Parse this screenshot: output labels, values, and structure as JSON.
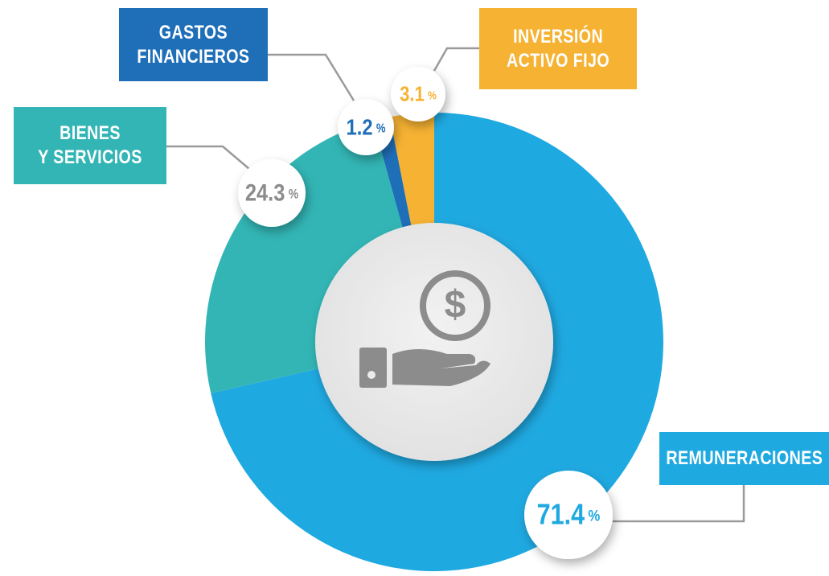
{
  "chart_data": {
    "type": "pie",
    "categories": [
      "REMUNERACIONES",
      "BIENES\nY SERVICIOS",
      "GASTOS\nFINANCIEROS",
      "INVERSIÓN\nACTIVO FIJO"
    ],
    "values": [
      71.4,
      24.3,
      1.2,
      3.1
    ],
    "colors": [
      "#1fa9e1",
      "#33b5b5",
      "#1e6eb8",
      "#f6b233"
    ],
    "value_label_colors": [
      "#1fa9e1",
      "#8c8c8c",
      "#1e6eb8",
      "#f6b233"
    ],
    "value_unit": "%",
    "donut": true
  }
}
